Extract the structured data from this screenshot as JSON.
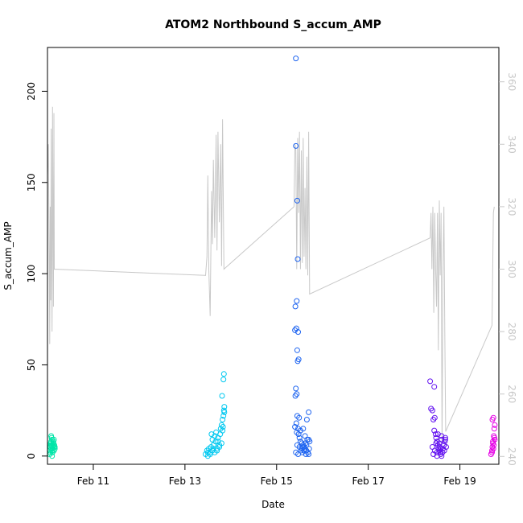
{
  "chart_data": {
    "type": "scatter",
    "title": "ATOM2 Northbound S_accum_AMP",
    "xlabel": "Date",
    "ylabel": "S_accum_AMP",
    "x_ticks": [
      "Feb 11",
      "Feb 13",
      "Feb 15",
      "Feb 17",
      "Feb 19"
    ],
    "x_tick_days": [
      11,
      13,
      15,
      17,
      19
    ],
    "xlim": [
      10.0,
      19.85
    ],
    "ylim": [
      -4.5,
      224
    ],
    "y_ticks": [
      0,
      50,
      100,
      150,
      200
    ],
    "y2lim": [
      237.5,
      371
    ],
    "y2_ticks": [
      240,
      260,
      280,
      300,
      320,
      340,
      360
    ],
    "grid": false,
    "legend": "none",
    "line_color": "#c8c8c8",
    "series": [
      {
        "color": "#00e5a8",
        "x": [
          10.05,
          10.06,
          10.07,
          10.08,
          10.09,
          10.1,
          10.11,
          10.12,
          10.13,
          10.14,
          10.15,
          10.16,
          10.05,
          10.07,
          10.09,
          10.11,
          10.13,
          10.15,
          10.06,
          10.08,
          10.1,
          10.12,
          10.14,
          10.16,
          10.08,
          10.1
        ],
        "y": [
          3,
          5,
          7,
          4,
          6,
          9,
          2,
          5,
          8,
          3,
          6,
          4,
          1,
          6,
          10,
          4,
          7,
          5,
          2,
          8,
          3,
          6,
          9,
          5,
          11,
          0
        ]
      },
      {
        "color": "#00c8f0",
        "x": [
          13.45,
          13.48,
          13.5,
          13.52,
          13.55,
          13.57,
          13.6,
          13.62,
          13.65,
          13.67,
          13.7,
          13.72,
          13.75,
          13.77,
          13.8,
          13.82,
          13.84,
          13.85,
          13.86,
          13.5,
          13.55,
          13.6,
          13.65,
          13.7,
          13.75,
          13.8,
          13.83,
          13.58,
          13.68,
          13.78,
          13.81,
          13.84,
          13.85,
          13.62,
          13.72,
          13.86,
          13.82
        ],
        "y": [
          1,
          3,
          2,
          4,
          1,
          5,
          3,
          6,
          2,
          8,
          4,
          10,
          6,
          12,
          7,
          14,
          22,
          25,
          27,
          0,
          2,
          9,
          11,
          3,
          5,
          17,
          16,
          12,
          13,
          15,
          33,
          42,
          45,
          4,
          8,
          24,
          20
        ]
      },
      {
        "color": "#1e64f0",
        "x": [
          15.42,
          15.42,
          15.45,
          15.46,
          15.44,
          15.41,
          15.43,
          15.47,
          15.4,
          15.45,
          15.48,
          15.46,
          15.42,
          15.44,
          15.41,
          15.45,
          15.49,
          15.43,
          15.4,
          15.47,
          15.5,
          15.52,
          15.55,
          15.58,
          15.6,
          15.62,
          15.65,
          15.68,
          15.7,
          15.72,
          15.45,
          15.5,
          15.55,
          15.6,
          15.65,
          15.7,
          15.48,
          15.52,
          15.58,
          15.62,
          15.66,
          15.7,
          15.42,
          15.47,
          15.53,
          15.57,
          15.63,
          15.67,
          15.71,
          15.44,
          15.56,
          15.64
        ],
        "y": [
          218,
          170,
          140,
          108,
          85,
          82,
          70,
          68,
          69,
          58,
          53,
          52,
          37,
          34,
          33,
          22,
          21,
          18,
          16,
          15,
          10,
          8,
          7,
          6,
          5,
          4,
          3,
          2,
          1,
          8,
          6,
          5,
          4,
          3,
          6,
          9,
          12,
          14,
          15,
          11,
          20,
          24,
          2,
          1,
          3,
          5,
          7,
          9,
          4,
          13,
          2,
          1
        ]
      },
      {
        "color": "#6414f0",
        "x": [
          18.35,
          18.37,
          18.4,
          18.42,
          18.44,
          18.45,
          18.47,
          18.48,
          18.5,
          18.52,
          18.53,
          18.55,
          18.57,
          18.58,
          18.6,
          18.62,
          18.63,
          18.65,
          18.67,
          18.68,
          18.7,
          18.4,
          18.45,
          18.5,
          18.55,
          18.6,
          18.65,
          18.42,
          18.5,
          18.58,
          18.66,
          18.44,
          18.52,
          18.6,
          18.68,
          18.48,
          18.56
        ],
        "y": [
          41,
          26,
          25,
          20,
          38,
          21,
          12,
          10,
          8,
          6,
          4,
          3,
          2,
          1,
          0,
          2,
          4,
          6,
          8,
          9,
          5,
          5,
          3,
          2,
          7,
          9,
          6,
          1,
          0,
          4,
          3,
          14,
          12,
          11,
          10,
          7,
          5
        ]
      },
      {
        "color": "#e600e6",
        "x": [
          19.68,
          19.7,
          19.71,
          19.72,
          19.73,
          19.74,
          19.75,
          19.76,
          19.7,
          19.72,
          19.74,
          19.76,
          19.71,
          19.73,
          19.75
        ],
        "y": [
          1,
          3,
          5,
          8,
          4,
          6,
          10,
          9,
          2,
          7,
          11,
          17,
          20,
          21,
          15
        ]
      }
    ],
    "secondary_line": {
      "x": [
        10.0,
        10.02,
        10.04,
        10.05,
        10.06,
        10.07,
        10.08,
        10.09,
        10.1,
        10.11,
        10.12,
        10.13,
        10.14,
        10.15,
        13.45,
        13.48,
        13.5,
        13.52,
        13.55,
        13.58,
        13.6,
        13.62,
        13.65,
        13.68,
        13.7,
        13.72,
        13.75,
        13.78,
        13.8,
        13.82,
        13.85,
        15.38,
        15.4,
        15.42,
        15.44,
        15.46,
        15.48,
        15.5,
        15.52,
        15.54,
        15.56,
        15.58,
        15.6,
        15.62,
        15.64,
        15.66,
        15.68,
        15.7,
        15.72,
        18.35,
        18.37,
        18.39,
        18.41,
        18.43,
        18.45,
        18.47,
        18.49,
        18.51,
        18.53,
        18.55,
        18.57,
        18.59,
        18.61,
        18.63,
        18.65,
        18.67,
        18.69,
        19.7,
        19.73,
        19.75
      ],
      "y": [
        330,
        340,
        300,
        276,
        320,
        290,
        345,
        305,
        280,
        352,
        320,
        288,
        350,
        300,
        298,
        304,
        330,
        300,
        285,
        325,
        308,
        335,
        310,
        343,
        306,
        344,
        315,
        340,
        301,
        348,
        300,
        320,
        340,
        338,
        300,
        342,
        318,
        344,
        300,
        338,
        302,
        342,
        304,
        326,
        300,
        336,
        298,
        344,
        292,
        310,
        318,
        300,
        320,
        286,
        318,
        300,
        288,
        318,
        274,
        322,
        298,
        318,
        244,
        298,
        320,
        280,
        248,
        282,
        318,
        320
      ]
    }
  }
}
